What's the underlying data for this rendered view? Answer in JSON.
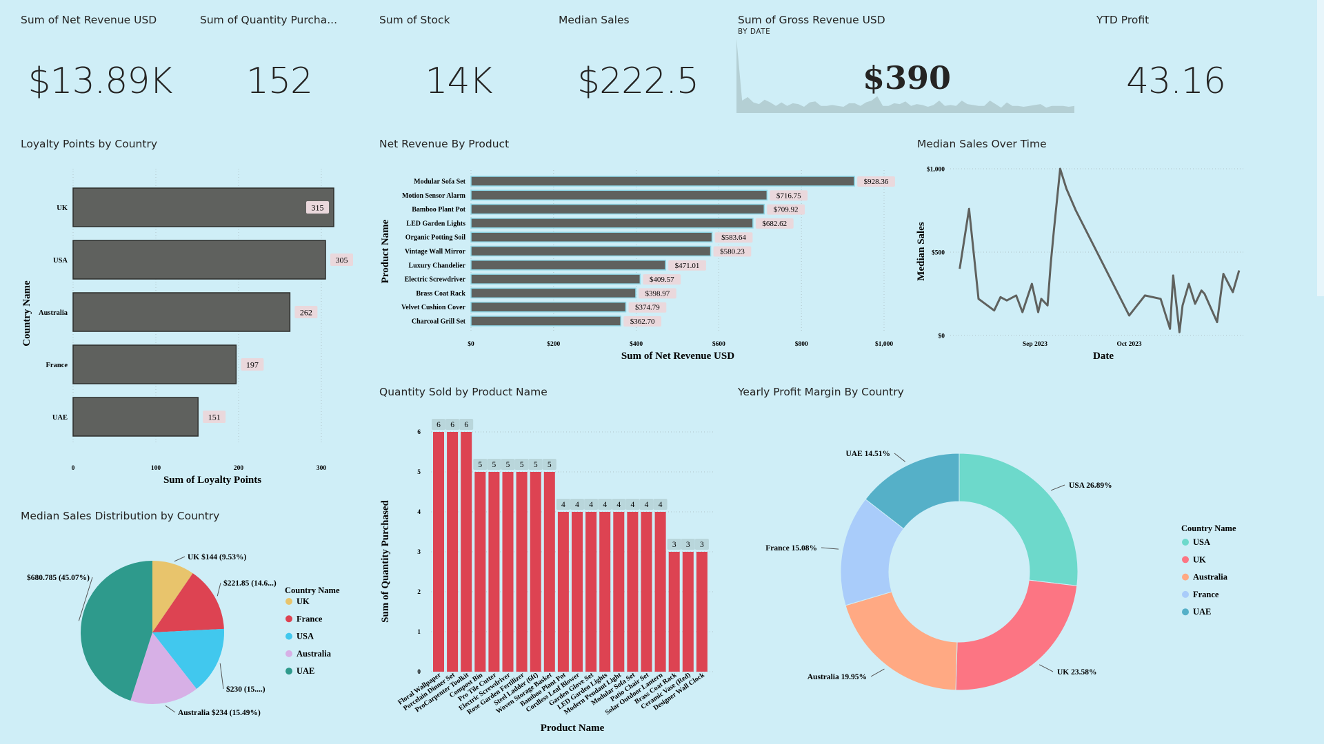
{
  "kpis": {
    "net_revenue": {
      "title": "Sum of Net Revenue USD",
      "value": "$13.89K"
    },
    "quantity": {
      "title": "Sum of Quantity Purcha...",
      "value": "152"
    },
    "stock": {
      "title": "Sum of Stock",
      "value": "14K"
    },
    "median_sales": {
      "title": "Median Sales",
      "value": "$222.5"
    },
    "gross_revenue": {
      "title": "Sum of Gross Revenue USD",
      "subtitle": "BY DATE",
      "value": "$390"
    },
    "ytd_profit": {
      "title": "YTD Profit",
      "value": "43.16"
    }
  },
  "colors": {
    "background": "#cfeef7",
    "bar_dark": "#5f615e",
    "bar_red": "#dd4352",
    "label_bg": "#ead8dc",
    "teal_label_bg": "#b9d6db"
  },
  "chart_data": [
    {
      "id": "loyalty",
      "type": "bar",
      "orientation": "horizontal",
      "title": "Loyalty Points by Country",
      "categories": [
        "UK",
        "USA",
        "Australia",
        "France",
        "UAE"
      ],
      "values": [
        315,
        305,
        262,
        197,
        151
      ],
      "xlabel": "Sum of Loyalty Points",
      "ylabel": "Country Name",
      "xticks": [
        "0",
        "100",
        "200",
        "300"
      ],
      "xlim": [
        0,
        320
      ]
    },
    {
      "id": "net_revenue_product",
      "type": "bar",
      "orientation": "horizontal",
      "title": "Net Revenue By Product",
      "categories": [
        "Modular Sofa Set",
        "Motion Sensor Alarm",
        "Bamboo Plant Pot",
        "LED Garden Lights",
        "Organic Potting Soil",
        "Vintage Wall Mirror",
        "Luxury Chandelier",
        "Electric Screwdriver",
        "Brass Coat Rack",
        "Velvet Cushion Cover",
        "Charcoal Grill Set"
      ],
      "values": [
        928.36,
        716.75,
        709.92,
        682.62,
        583.64,
        580.23,
        471.01,
        409.57,
        398.97,
        374.79,
        362.7
      ],
      "labels": [
        "$928.36",
        "$716.75",
        "$709.92",
        "$682.62",
        "$583.64",
        "$580.23",
        "$471.01",
        "$409.57",
        "$398.97",
        "$374.79",
        "$362.70"
      ],
      "xlabel": "Sum of Net Revenue USD",
      "ylabel": "Product Name",
      "xticks": [
        "$0",
        "$200",
        "$400",
        "$600",
        "$800",
        "$1,000"
      ],
      "xlim": [
        0,
        1000
      ]
    },
    {
      "id": "median_sales_time",
      "type": "line",
      "title": "Median Sales Over Time",
      "xlabel": "Date",
      "ylabel": "Median Sales",
      "yticks": [
        "$0",
        "$500",
        "$1,000"
      ],
      "ylim": [
        0,
        1000
      ],
      "xticks": [
        "Sep 2023",
        "Oct 2023"
      ],
      "x": [
        "2023-08-08",
        "2023-08-11",
        "2023-08-14",
        "2023-08-19",
        "2023-08-21",
        "2023-08-23",
        "2023-08-26",
        "2023-08-28",
        "2023-08-31",
        "2023-09-02",
        "2023-09-03",
        "2023-09-05",
        "2023-09-06",
        "2023-09-07",
        "2023-09-09",
        "2023-09-11",
        "2023-09-14",
        "2023-10-01",
        "2023-10-06",
        "2023-10-11",
        "2023-10-14",
        "2023-10-15",
        "2023-10-17",
        "2023-10-18",
        "2023-10-20",
        "2023-10-22",
        "2023-10-24",
        "2023-10-25",
        "2023-10-29",
        "2023-10-31",
        "2023-11-03",
        "2023-11-05"
      ],
      "y": [
        400,
        760,
        220,
        150,
        230,
        210,
        240,
        140,
        310,
        140,
        220,
        180,
        430,
        630,
        1000,
        880,
        750,
        120,
        240,
        220,
        40,
        360,
        20,
        180,
        310,
        190,
        270,
        250,
        80,
        370,
        260,
        390
      ]
    },
    {
      "id": "gross_revenue_spark",
      "type": "area",
      "title": "Sum of Gross Revenue USD",
      "values": [
        420,
        70,
        90,
        60,
        50,
        75,
        60,
        40,
        60,
        40,
        55,
        50,
        35,
        60,
        65,
        40,
        40,
        45,
        40,
        35,
        55,
        55,
        40,
        60,
        70,
        95,
        40,
        40,
        55,
        50,
        65,
        40,
        50,
        45,
        35,
        45,
        70,
        40,
        45,
        40,
        70,
        50,
        45,
        40,
        40,
        70,
        50,
        30,
        60,
        40,
        40,
        35,
        40,
        45,
        50,
        30,
        40,
        40,
        40,
        35,
        40
      ]
    },
    {
      "id": "quantity_product",
      "type": "bar",
      "title": "Quantity Sold by Product Name",
      "categories": [
        "Floral Wallpaper",
        "Porcelain Dinner Set",
        "ProCarpenter Toolkit",
        "Compost Bin",
        "Pro Tile Cutter",
        "Electric Screwdriver",
        "Rose Garden Fertilizer",
        "Steel Ladder (6ft)",
        "Woven Storage Basket",
        "Bamboo Plant Pot",
        "Cordless Leaf Blower",
        "Garden Glove Set",
        "LED Garden Lights",
        "Modern Pendant Light",
        "Modular Sofa Set",
        "Patio Chair Set",
        "Solar Outdoor Lantern",
        "Brass Coat Rack",
        "Ceramic Vase (Red)",
        "Designer Wall Clock"
      ],
      "values": [
        6,
        6,
        6,
        5,
        5,
        5,
        5,
        5,
        5,
        4,
        4,
        4,
        4,
        4,
        4,
        4,
        4,
        3,
        3,
        3
      ],
      "xlabel": "Product Name",
      "ylabel": "Sum of Quantity Purchased",
      "yticks": [
        "0",
        "1",
        "2",
        "3",
        "4",
        "5",
        "6"
      ],
      "ylim": [
        0,
        6
      ]
    },
    {
      "id": "median_sales_pie",
      "type": "pie",
      "title": "Median Sales Distribution by Country",
      "legend_title": "Country Name",
      "series": [
        {
          "name": "UK",
          "value": 144,
          "label": "UK $144 (9.53%)",
          "color": "#e8c46c"
        },
        {
          "name": "France",
          "value": 221.85,
          "label": "$221.85 (14.6...)",
          "color": "#dd4352"
        },
        {
          "name": "USA",
          "value": 230,
          "label": "$230 (15....)",
          "color": "#41c8ee"
        },
        {
          "name": "Australia",
          "value": 234,
          "label": "Australia $234 (15.49%)",
          "color": "#d7b0e6"
        },
        {
          "name": "UAE",
          "value": 680.785,
          "label": "$680.785 (45.07%)",
          "color": "#2e9a8c"
        }
      ]
    },
    {
      "id": "profit_margin_donut",
      "type": "pie",
      "title": "Yearly Profit Margin By Country",
      "legend_title": "Country Name",
      "series": [
        {
          "name": "USA",
          "value": 26.89,
          "label": "USA 26.89%",
          "color": "#6dd9cb"
        },
        {
          "name": "UK",
          "value": 23.58,
          "label": "UK 23.58%",
          "color": "#fc7583"
        },
        {
          "name": "Australia",
          "value": 19.95,
          "label": "Australia 19.95%",
          "color": "#ffa983"
        },
        {
          "name": "France",
          "value": 15.08,
          "label": "France 15.08%",
          "color": "#a9ccfa"
        },
        {
          "name": "UAE",
          "value": 14.51,
          "label": "UAE 14.51%",
          "color": "#55b0c8"
        }
      ]
    }
  ]
}
